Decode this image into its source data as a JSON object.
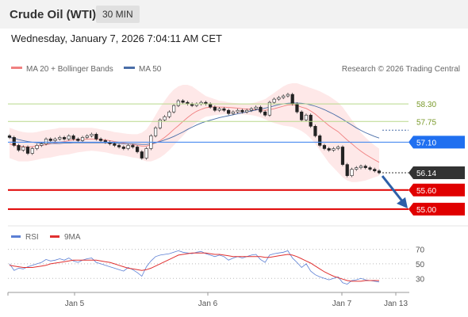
{
  "header": {
    "title": "Crude Oil (WTI)",
    "timeframe": "30 MIN"
  },
  "datetime": "Wednesday, January 7, 2026 7:04:11 AM CET",
  "legend": {
    "ma20": "MA 20 + Bollinger Bands",
    "ma50": "MA 50",
    "credit": "Research © 2026 Trading Central",
    "rsi": "RSI",
    "ma9": "9MA"
  },
  "colors": {
    "bollinger": "#fde0e0",
    "ma20": "#f08080",
    "ma50": "#4a6ea8",
    "pivot": "#4a8cf0",
    "resistance": "#b8d98a",
    "support": "#e00000",
    "current": "#333333",
    "arrow": "#2d5fa8",
    "rsi": "#5b7fd4",
    "rsi_ma": "#e03030"
  },
  "chart_data": [
    {
      "type": "candlestick",
      "title": "Crude Oil (WTI)",
      "x_ticks": [
        "Jan 5",
        "Jan 6",
        "Jan 7",
        "Jan 13"
      ],
      "ylim": [
        54.6,
        58.95
      ],
      "levels": [
        {
          "name": "resistance",
          "value": 58.3,
          "label": "58.30"
        },
        {
          "name": "resistance",
          "value": 57.75,
          "label": "57.75"
        },
        {
          "name": "pivot",
          "value": 57.1,
          "label": "57.10"
        },
        {
          "name": "current",
          "value": 56.14,
          "label": "56.14"
        },
        {
          "name": "support",
          "value": 55.6,
          "label": "55.60"
        },
        {
          "name": "support",
          "value": 55.0,
          "label": "55.00"
        }
      ],
      "close": [
        57.25,
        57.0,
        56.85,
        56.95,
        56.75,
        56.9,
        57.0,
        57.05,
        57.2,
        57.15,
        57.2,
        57.25,
        57.2,
        57.3,
        57.2,
        57.15,
        57.25,
        57.3,
        57.35,
        57.2,
        57.15,
        57.1,
        57.05,
        57.0,
        56.95,
        56.9,
        57.0,
        56.95,
        56.8,
        56.6,
        56.9,
        57.3,
        57.55,
        57.8,
        57.9,
        58.05,
        58.25,
        58.4,
        58.35,
        58.3,
        58.25,
        58.3,
        58.35,
        58.3,
        58.2,
        58.1,
        58.15,
        58.1,
        58.0,
        58.05,
        58.1,
        58.05,
        58.1,
        58.15,
        58.2,
        58.05,
        57.95,
        58.35,
        58.45,
        58.5,
        58.55,
        58.6,
        58.3,
        58.05,
        57.8,
        57.95,
        57.6,
        57.3,
        57.0,
        56.9,
        56.85,
        56.9,
        56.95,
        56.4,
        56.05,
        56.25,
        56.3,
        56.35,
        56.3,
        56.25,
        56.2,
        56.14
      ],
      "ma20": [
        57.05,
        57.0,
        56.98,
        56.96,
        56.95,
        56.96,
        56.98,
        57.0,
        57.02,
        57.05,
        57.08,
        57.1,
        57.12,
        57.15,
        57.17,
        57.18,
        57.19,
        57.2,
        57.2,
        57.19,
        57.18,
        57.17,
        57.15,
        57.12,
        57.1,
        57.07,
        57.05,
        57.03,
        57.0,
        56.98,
        56.98,
        57.02,
        57.08,
        57.15,
        57.25,
        57.37,
        57.5,
        57.62,
        57.75,
        57.87,
        57.98,
        58.07,
        58.13,
        58.18,
        58.2,
        58.21,
        58.2,
        58.2,
        58.19,
        58.18,
        58.17,
        58.15,
        58.14,
        58.13,
        58.12,
        58.11,
        58.1,
        58.12,
        58.15,
        58.19,
        58.23,
        58.27,
        58.28,
        58.25,
        58.2,
        58.16,
        58.08,
        57.98,
        57.86,
        57.74,
        57.62,
        57.52,
        57.43,
        57.3,
        57.17,
        57.05,
        56.93,
        56.82,
        56.72,
        56.63,
        56.55,
        56.47
      ],
      "ma50": [
        57.25,
        57.22,
        57.18,
        57.15,
        57.12,
        57.1,
        57.08,
        57.07,
        57.06,
        57.06,
        57.06,
        57.06,
        57.07,
        57.07,
        57.08,
        57.08,
        57.08,
        57.08,
        57.08,
        57.08,
        57.08,
        57.08,
        57.07,
        57.07,
        57.06,
        57.05,
        57.05,
        57.05,
        57.04,
        57.03,
        57.03,
        57.05,
        57.08,
        57.12,
        57.17,
        57.22,
        57.28,
        57.35,
        57.42,
        57.5,
        57.57,
        57.64,
        57.7,
        57.75,
        57.79,
        57.83,
        57.87,
        57.9,
        57.93,
        57.96,
        57.99,
        58.02,
        58.05,
        58.08,
        58.11,
        58.14,
        58.17,
        58.2,
        58.24,
        58.28,
        58.3,
        58.32,
        58.33,
        58.33,
        58.32,
        58.3,
        58.27,
        58.23,
        58.18,
        58.12,
        58.05,
        57.98,
        57.9,
        57.82,
        57.73,
        57.64,
        57.55,
        57.47,
        57.4,
        57.34,
        57.28,
        57.23
      ],
      "bollinger_upper": [
        57.55,
        57.5,
        57.45,
        57.42,
        57.4,
        57.4,
        57.42,
        57.45,
        57.48,
        57.5,
        57.52,
        57.55,
        57.55,
        57.55,
        57.55,
        57.55,
        57.55,
        57.55,
        57.55,
        57.53,
        57.5,
        57.48,
        57.45,
        57.42,
        57.4,
        57.38,
        57.36,
        57.35,
        57.35,
        57.4,
        57.5,
        57.7,
        57.95,
        58.2,
        58.4,
        58.6,
        58.75,
        58.85,
        58.9,
        58.9,
        58.85,
        58.75,
        58.65,
        58.55,
        58.5,
        58.45,
        58.4,
        58.38,
        58.35,
        58.33,
        58.32,
        58.3,
        58.3,
        58.32,
        58.35,
        58.4,
        58.45,
        58.55,
        58.65,
        58.75,
        58.85,
        58.92,
        58.95,
        58.95,
        58.9,
        58.85,
        58.8,
        58.75,
        58.7,
        58.62,
        58.55,
        58.45,
        58.35,
        58.2,
        58.0,
        57.8,
        57.6,
        57.4,
        57.25,
        57.12,
        57.0,
        56.9
      ],
      "bollinger_lower": [
        56.6,
        56.55,
        56.5,
        56.5,
        56.5,
        56.52,
        56.55,
        56.58,
        56.6,
        56.62,
        56.65,
        56.68,
        56.7,
        56.72,
        56.75,
        56.78,
        56.8,
        56.82,
        56.83,
        56.82,
        56.8,
        56.78,
        56.75,
        56.72,
        56.7,
        56.68,
        56.65,
        56.62,
        56.6,
        56.55,
        56.5,
        56.5,
        56.55,
        56.62,
        56.72,
        56.85,
        57.0,
        57.15,
        57.3,
        57.45,
        57.6,
        57.72,
        57.82,
        57.9,
        57.92,
        57.95,
        57.96,
        57.97,
        57.98,
        57.98,
        57.98,
        57.97,
        57.96,
        57.95,
        57.92,
        57.88,
        57.82,
        57.75,
        57.7,
        57.66,
        57.62,
        57.6,
        57.58,
        57.52,
        57.45,
        57.35,
        57.22,
        57.05,
        56.85,
        56.65,
        56.45,
        56.3,
        56.15,
        56.0,
        55.9,
        55.85,
        55.85,
        55.87,
        55.9,
        55.95,
        56.0,
        56.05
      ]
    },
    {
      "type": "line",
      "title": "RSI",
      "ylim": [
        15,
        75
      ],
      "y_ticks": [
        70,
        50,
        30
      ],
      "series": [
        {
          "name": "RSI",
          "values": [
            50,
            41,
            44,
            43,
            46,
            48,
            50,
            52,
            56,
            54,
            55,
            57,
            55,
            58,
            54,
            52,
            55,
            57,
            58,
            52,
            50,
            48,
            46,
            44,
            42,
            40,
            45,
            42,
            38,
            33,
            46,
            54,
            60,
            62,
            63,
            64,
            66,
            68,
            66,
            65,
            64,
            66,
            67,
            64,
            62,
            60,
            62,
            60,
            55,
            58,
            60,
            58,
            60,
            62,
            63,
            56,
            52,
            62,
            64,
            65,
            66,
            68,
            58,
            52,
            45,
            50,
            40,
            35,
            32,
            30,
            28,
            30,
            32,
            24,
            22,
            27,
            28,
            30,
            28,
            27,
            26,
            25
          ]
        },
        {
          "name": "9MA",
          "values": [
            48,
            47,
            46,
            45,
            45,
            45,
            46,
            47,
            48,
            50,
            51,
            52,
            53,
            54,
            55,
            55,
            55,
            55,
            55,
            55,
            54,
            53,
            52,
            50,
            48,
            46,
            44,
            43,
            42,
            41,
            42,
            44,
            47,
            50,
            53,
            56,
            59,
            62,
            63,
            64,
            65,
            65,
            65,
            65,
            64,
            63,
            63,
            62,
            61,
            60,
            60,
            60,
            60,
            60,
            60,
            60,
            59,
            59,
            60,
            61,
            62,
            63,
            62,
            60,
            57,
            54,
            51,
            47,
            43,
            39,
            36,
            33,
            31,
            29,
            27,
            26,
            26,
            26,
            27,
            27,
            27,
            27
          ]
        }
      ]
    }
  ]
}
